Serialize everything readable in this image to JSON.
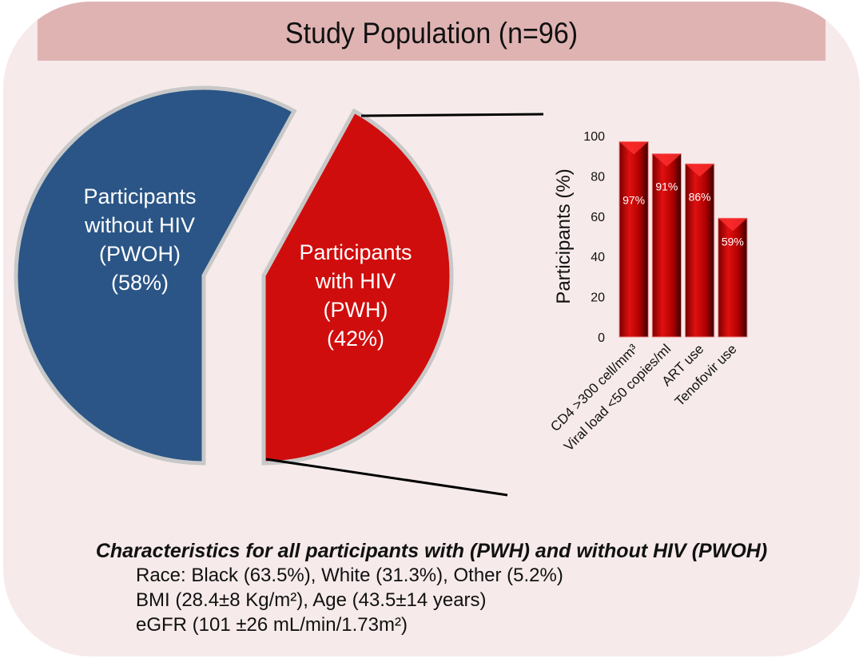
{
  "title": "Study Population (n=96)",
  "chart_data": [
    {
      "type": "pie",
      "slices": [
        {
          "label_lines": [
            "Participants",
            "without HIV",
            "(PWOH)",
            "(58%)"
          ],
          "value": 58,
          "color": "#2a5586"
        },
        {
          "label_lines": [
            "Participants",
            "with HIV",
            "(PWH)",
            "(42%)"
          ],
          "value": 42,
          "color": "#d00d0d"
        }
      ]
    },
    {
      "type": "bar",
      "categories": [
        "CD4 >300 cell/mm³",
        "Viral load <50 copies/ml",
        "ART use",
        "Tenofovir use"
      ],
      "values": [
        97,
        91,
        86,
        59
      ],
      "data_labels": [
        "97%",
        "91%",
        "86%",
        "59%"
      ],
      "ylabel": "Participants (%)",
      "ylim": [
        0,
        100
      ],
      "yticks": [
        "0",
        "20",
        "40",
        "60",
        "80",
        "100"
      ],
      "color": "#c00000"
    }
  ],
  "characteristics": {
    "title": "Characteristics for all participants with (PWH) and without HIV (PWOH)",
    "lines": [
      "Race: Black (63.5%), White (31.3%), Other (5.2%)",
      "BMI (28.4±8 Kg/m²), Age (43.5±14 years)",
      "eGFR (101 ±26 mL/min/1.73m²)"
    ]
  }
}
